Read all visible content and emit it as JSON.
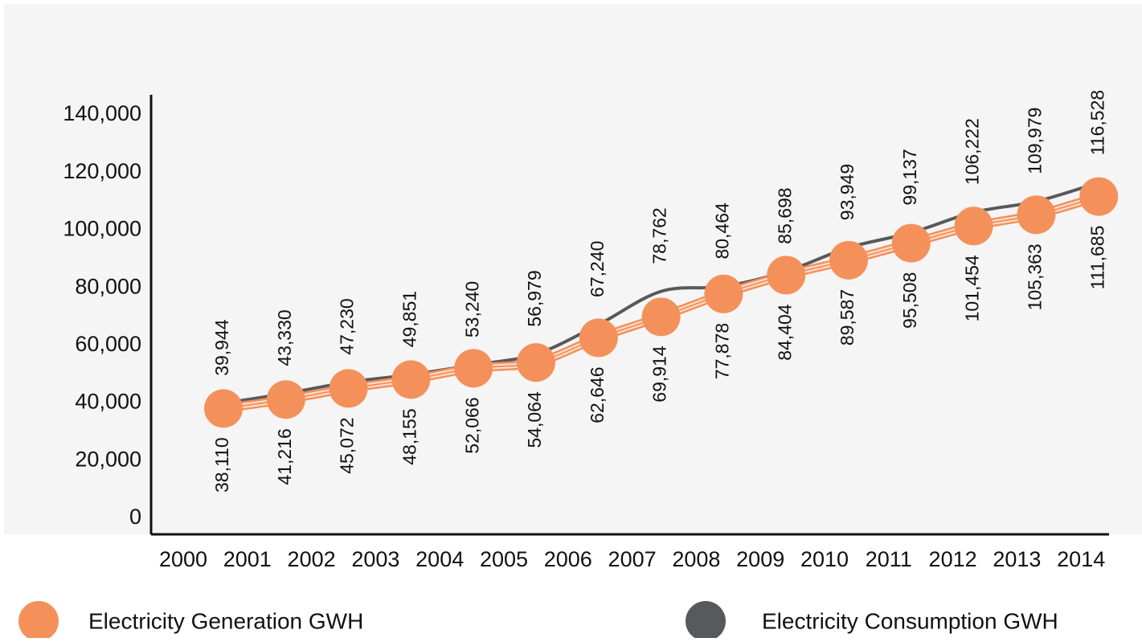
{
  "chart_data": {
    "type": "line",
    "categories": [
      "2000",
      "2001",
      "2002",
      "2003",
      "2004",
      "2005",
      "2006",
      "2007",
      "2008",
      "2009",
      "2010",
      "2011",
      "2012",
      "2013",
      "2014"
    ],
    "series": [
      {
        "name": "Electricity Generation GWH",
        "color": "#f4915b",
        "values": [
          38110,
          41216,
          45072,
          48155,
          52066,
          54064,
          62646,
          69914,
          77878,
          84404,
          89587,
          95508,
          101454,
          105363,
          111685
        ],
        "value_labels": [
          "38,110",
          "41,216",
          "45,072",
          "48,155",
          "52,066",
          "54,064",
          "62,646",
          "69,914",
          "77,878",
          "84,404",
          "89,587",
          "95,508",
          "101,454",
          "105,363",
          "111,685"
        ]
      },
      {
        "name": "Electricity Consumption GWH",
        "color": "#58595b",
        "values": [
          39944,
          43330,
          47230,
          49851,
          53240,
          56979,
          67240,
          78762,
          80464,
          85698,
          93949,
          99137,
          106222,
          109979,
          116528
        ],
        "value_labels": [
          "39,944",
          "43,330",
          "47,230",
          "49,851",
          "53,240",
          "56,979",
          "67,240",
          "78,762",
          "80,464",
          "85,698",
          "93,949",
          "99,137",
          "106,222",
          "109,979",
          "116,528"
        ]
      }
    ],
    "ylim": [
      0,
      147000
    ],
    "yticks": [
      0,
      {
        "value": 20000,
        "label": "20,000"
      },
      {
        "value": 40000,
        "label": "40,000"
      },
      {
        "value": 60000,
        "label": "60,000"
      },
      {
        "value": 80000,
        "label": "80,000"
      },
      {
        "value": 100000,
        "label": "100,000"
      },
      {
        "value": 120000,
        "label": "120,000"
      },
      {
        "value": 140000,
        "label": "140,000"
      }
    ],
    "grid": false
  }
}
